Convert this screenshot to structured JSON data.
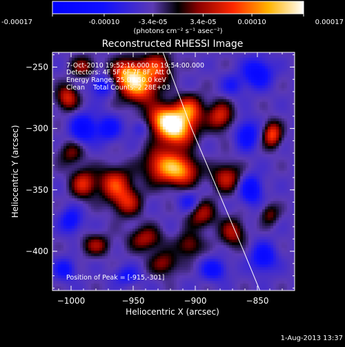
{
  "colorbar": {
    "ticks": [
      "-0.00017",
      "-0.00010",
      "-3.4e-05",
      "3.4e-05",
      "0.00010",
      "0.00017"
    ],
    "unit_label": "(photons cm⁻² s⁻¹ asec⁻²)",
    "range": [
      -0.00017,
      0.00017
    ]
  },
  "chart_data": {
    "type": "heatmap",
    "title": "Reconstructed RHESSI Image",
    "xlabel": "Heliocentric X (arcsec)",
    "ylabel": "Heliocentric Y (arcsec)",
    "xlim": [
      -1015,
      -820
    ],
    "ylim": [
      -432,
      -238
    ],
    "x_ticks": [
      {
        "value": -1000,
        "label": "−1000"
      },
      {
        "value": -950,
        "label": "−950"
      },
      {
        "value": -900,
        "label": "−900"
      },
      {
        "value": -850,
        "label": "−850"
      }
    ],
    "y_ticks": [
      {
        "value": -250,
        "label": "−250"
      },
      {
        "value": -300,
        "label": "−300"
      },
      {
        "value": -350,
        "label": "−350"
      },
      {
        "value": -400,
        "label": "−400"
      }
    ],
    "info_lines": [
      "7-Oct-2010 19:52:16.000 to 19:54:00.000",
      "Detectors: 4F 5F 6F 7F 8F, Att 0",
      "Energy Range: 25.0 - 50.0 keV",
      "Clean    Total Counts: 2.28E+03"
    ],
    "peak_label": "Position of Peak = [-915,-301]",
    "peak": {
      "x": -915,
      "y": -301
    },
    "limb": [
      {
        "x": -926,
        "y": -238
      },
      {
        "x": -903,
        "y": -300
      },
      {
        "x": -882,
        "y": -350
      },
      {
        "x": -861,
        "y": -400
      },
      {
        "x": -848,
        "y": -432
      }
    ],
    "blobs": [
      {
        "x": -915,
        "y": -301,
        "v": 0.00017,
        "sx": 10,
        "sy": 9
      },
      {
        "x": -925,
        "y": -292,
        "v": 0.00014,
        "sx": 9,
        "sy": 8
      },
      {
        "x": -905,
        "y": -285,
        "v": 0.00012,
        "sx": 8,
        "sy": 8
      },
      {
        "x": -925,
        "y": -330,
        "v": 0.00013,
        "sx": 11,
        "sy": 10
      },
      {
        "x": -910,
        "y": -335,
        "v": 0.00011,
        "sx": 9,
        "sy": 8
      },
      {
        "x": -945,
        "y": -265,
        "v": 0.00015,
        "sx": 10,
        "sy": 10
      },
      {
        "x": -955,
        "y": -255,
        "v": 0.00012,
        "sx": 9,
        "sy": 8
      },
      {
        "x": -930,
        "y": -250,
        "v": 0.0001,
        "sx": 8,
        "sy": 8
      },
      {
        "x": -965,
        "y": -345,
        "v": 0.00011,
        "sx": 9,
        "sy": 9
      },
      {
        "x": -955,
        "y": -360,
        "v": 9e-05,
        "sx": 8,
        "sy": 8
      },
      {
        "x": -990,
        "y": -345,
        "v": 0.0001,
        "sx": 7,
        "sy": 8
      },
      {
        "x": -1000,
        "y": -320,
        "v": 6e-05,
        "sx": 7,
        "sy": 7
      },
      {
        "x": -1003,
        "y": -275,
        "v": 0.0001,
        "sx": 6,
        "sy": 7
      },
      {
        "x": -990,
        "y": -250,
        "v": 7e-05,
        "sx": 7,
        "sy": 6
      },
      {
        "x": -880,
        "y": -290,
        "v": 0.0001,
        "sx": 7,
        "sy": 8
      },
      {
        "x": -875,
        "y": -340,
        "v": 9e-05,
        "sx": 8,
        "sy": 8
      },
      {
        "x": -870,
        "y": -385,
        "v": 8e-05,
        "sx": 7,
        "sy": 8
      },
      {
        "x": -895,
        "y": -370,
        "v": 8e-05,
        "sx": 8,
        "sy": 8
      },
      {
        "x": -940,
        "y": -390,
        "v": 8e-05,
        "sx": 9,
        "sy": 7
      },
      {
        "x": -980,
        "y": -395,
        "v": 7e-05,
        "sx": 8,
        "sy": 6
      },
      {
        "x": -925,
        "y": -410,
        "v": 7e-05,
        "sx": 8,
        "sy": 7
      },
      {
        "x": -905,
        "y": -395,
        "v": 7e-05,
        "sx": 7,
        "sy": 7
      },
      {
        "x": -838,
        "y": -305,
        "v": 0.00012,
        "sx": 5,
        "sy": 7
      },
      {
        "x": -840,
        "y": -370,
        "v": 6e-05,
        "sx": 5,
        "sy": 6
      },
      {
        "x": -990,
        "y": -300,
        "v": -0.0001,
        "sx": 7,
        "sy": 8
      },
      {
        "x": -970,
        "y": -300,
        "v": -8e-05,
        "sx": 7,
        "sy": 7
      },
      {
        "x": -975,
        "y": -265,
        "v": -8e-05,
        "sx": 6,
        "sy": 6
      },
      {
        "x": -850,
        "y": -255,
        "v": -0.0001,
        "sx": 8,
        "sy": 8
      },
      {
        "x": -858,
        "y": -305,
        "v": -9e-05,
        "sx": 6,
        "sy": 8
      },
      {
        "x": -855,
        "y": -350,
        "v": -0.0001,
        "sx": 6,
        "sy": 8
      },
      {
        "x": -845,
        "y": -405,
        "v": -9e-05,
        "sx": 7,
        "sy": 8
      },
      {
        "x": -1000,
        "y": -375,
        "v": -8e-05,
        "sx": 6,
        "sy": 7
      },
      {
        "x": -1005,
        "y": -415,
        "v": -7e-05,
        "sx": 6,
        "sy": 6
      },
      {
        "x": -955,
        "y": -420,
        "v": -6e-05,
        "sx": 7,
        "sy": 5
      },
      {
        "x": -885,
        "y": -415,
        "v": -8e-05,
        "sx": 7,
        "sy": 6
      },
      {
        "x": -905,
        "y": -360,
        "v": -6e-05,
        "sx": 6,
        "sy": 6
      },
      {
        "x": -870,
        "y": -265,
        "v": -5e-05,
        "sx": 6,
        "sy": 6
      },
      {
        "x": -945,
        "y": -300,
        "v": -4e-05,
        "sx": 5,
        "sy": 5
      }
    ],
    "background_value": -4e-05,
    "grid": false
  },
  "footer": {
    "date_stamp": "1-Aug-2013 13:37"
  }
}
